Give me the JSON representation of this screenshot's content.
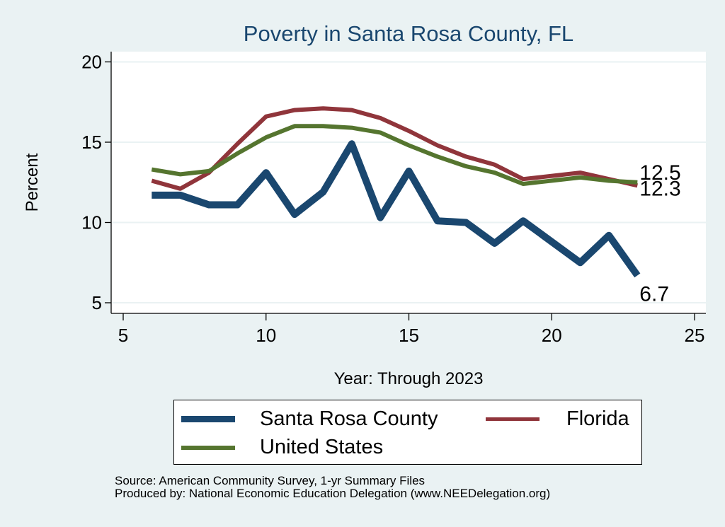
{
  "chart_data": {
    "type": "line",
    "title": "Poverty in Santa Rosa County, FL",
    "xlabel": "Year: Through 2023",
    "ylabel": "Percent",
    "xlim": [
      5,
      25
    ],
    "ylim": [
      4.4,
      20.6
    ],
    "xticks": [
      5,
      10,
      15,
      20,
      25
    ],
    "yticks": [
      5,
      10,
      15,
      20
    ],
    "grid": true,
    "legend_position": "bottom",
    "series": [
      {
        "name": "Santa Rosa County",
        "color": "#1a476f",
        "x": [
          6,
          7,
          8,
          9,
          10,
          11,
          12,
          13,
          14,
          15,
          16,
          17,
          18,
          19,
          21,
          22,
          23
        ],
        "values": [
          11.7,
          11.7,
          11.1,
          11.1,
          13.1,
          10.5,
          11.9,
          14.9,
          10.3,
          13.2,
          10.1,
          10.0,
          8.7,
          10.1,
          7.5,
          9.2,
          6.7
        ],
        "end_label": "6.7"
      },
      {
        "name": "Florida",
        "color": "#90353b",
        "x": [
          6,
          7,
          8,
          9,
          10,
          11,
          12,
          13,
          14,
          15,
          16,
          17,
          18,
          19,
          21,
          22,
          23
        ],
        "values": [
          12.6,
          12.1,
          13.1,
          14.9,
          16.6,
          17.0,
          17.1,
          17.0,
          16.5,
          15.7,
          14.8,
          14.1,
          13.6,
          12.7,
          13.1,
          12.7,
          12.3
        ],
        "end_label": "12.3"
      },
      {
        "name": "United States",
        "color": "#55752f",
        "x": [
          6,
          7,
          8,
          9,
          10,
          11,
          12,
          13,
          14,
          15,
          16,
          17,
          18,
          19,
          21,
          22,
          23
        ],
        "values": [
          13.3,
          13.0,
          13.2,
          14.3,
          15.3,
          16.0,
          16.0,
          15.9,
          15.6,
          14.8,
          14.1,
          13.5,
          13.1,
          12.4,
          12.8,
          12.6,
          12.5
        ],
        "end_label": "12.5"
      }
    ]
  },
  "legend": {
    "items": [
      {
        "label": "Santa Rosa County",
        "color": "#1a476f"
      },
      {
        "label": "Florida",
        "color": "#90353b"
      },
      {
        "label": "United States",
        "color": "#55752f"
      }
    ]
  },
  "notes": {
    "source": "Source: American Community Survey, 1-yr Summary Files",
    "produced_by": "Produced by: National Economic Education Delegation (www.NEEDelegation.org)"
  },
  "colors": {
    "background": "#eaf2f3",
    "plot_background": "#ffffff",
    "title": "#1a476f"
  }
}
